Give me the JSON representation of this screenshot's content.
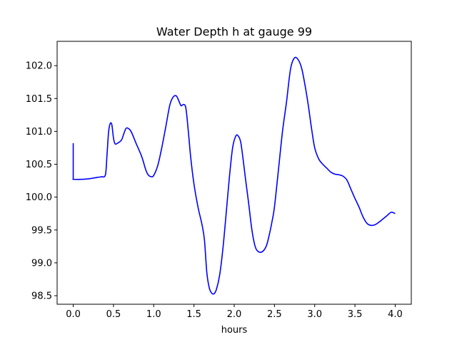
{
  "chart_data": {
    "type": "line",
    "title": "Water Depth h at gauge 99",
    "xlabel": "hours",
    "ylabel": "",
    "xlim": [
      -0.2,
      4.2
    ],
    "ylim": [
      98.37,
      102.37
    ],
    "xticks": [
      0.0,
      0.5,
      1.0,
      1.5,
      2.0,
      2.5,
      3.0,
      3.5,
      4.0
    ],
    "xtick_labels": [
      "0.0",
      "0.5",
      "1.0",
      "1.5",
      "2.0",
      "2.5",
      "3.0",
      "3.5",
      "4.0"
    ],
    "yticks": [
      98.5,
      99.0,
      99.5,
      100.0,
      100.5,
      101.0,
      101.5,
      102.0
    ],
    "ytick_labels": [
      "98.5",
      "99.0",
      "99.5",
      "100.0",
      "100.5",
      "101.0",
      "101.5",
      "102.0"
    ],
    "grid": false,
    "legend": "none",
    "series": [
      {
        "color": "#0000ff",
        "x": [
          0.0,
          0.0,
          0.005,
          0.1,
          0.2,
          0.3,
          0.35,
          0.4,
          0.42,
          0.44,
          0.46,
          0.48,
          0.5,
          0.52,
          0.55,
          0.6,
          0.63,
          0.66,
          0.7,
          0.73,
          0.78,
          0.85,
          0.9,
          0.93,
          0.97,
          1.0,
          1.05,
          1.1,
          1.15,
          1.2,
          1.24,
          1.28,
          1.31,
          1.34,
          1.37,
          1.4,
          1.43,
          1.46,
          1.5,
          1.55,
          1.6,
          1.63,
          1.66,
          1.69,
          1.72,
          1.75,
          1.78,
          1.82,
          1.86,
          1.9,
          1.94,
          1.98,
          2.02,
          2.05,
          2.08,
          2.11,
          2.14,
          2.18,
          2.22,
          2.26,
          2.3,
          2.35,
          2.4,
          2.44,
          2.47,
          2.5,
          2.55,
          2.6,
          2.65,
          2.7,
          2.75,
          2.8,
          2.84,
          2.88,
          2.92,
          2.96,
          3.0,
          3.05,
          3.1,
          3.15,
          3.2,
          3.25,
          3.3,
          3.35,
          3.4,
          3.45,
          3.5,
          3.55,
          3.6,
          3.65,
          3.7,
          3.75,
          3.8,
          3.85,
          3.9,
          3.95,
          4.0
        ],
        "y": [
          100.82,
          100.27,
          100.27,
          100.27,
          100.28,
          100.3,
          100.31,
          100.34,
          100.65,
          101.0,
          101.12,
          101.1,
          100.9,
          100.81,
          100.82,
          100.87,
          100.97,
          101.05,
          101.03,
          100.97,
          100.82,
          100.62,
          100.42,
          100.34,
          100.31,
          100.33,
          100.48,
          100.75,
          101.07,
          101.4,
          101.52,
          101.54,
          101.47,
          101.39,
          101.41,
          101.35,
          101.0,
          100.6,
          100.2,
          99.85,
          99.58,
          99.35,
          98.85,
          98.62,
          98.54,
          98.53,
          98.6,
          98.82,
          99.22,
          99.75,
          100.3,
          100.75,
          100.93,
          100.93,
          100.84,
          100.58,
          100.28,
          99.9,
          99.5,
          99.25,
          99.17,
          99.17,
          99.26,
          99.45,
          99.63,
          99.85,
          100.42,
          101.0,
          101.45,
          101.95,
          102.12,
          102.08,
          101.95,
          101.7,
          101.4,
          101.05,
          100.75,
          100.58,
          100.5,
          100.44,
          100.38,
          100.35,
          100.34,
          100.32,
          100.26,
          100.12,
          99.98,
          99.85,
          99.7,
          99.6,
          99.57,
          99.58,
          99.62,
          99.67,
          99.72,
          99.77,
          99.75
        ]
      }
    ]
  }
}
